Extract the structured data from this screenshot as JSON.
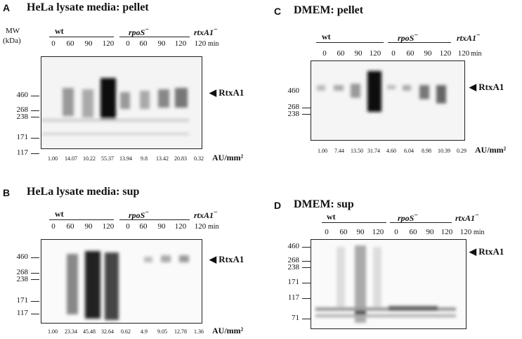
{
  "panels": {
    "A": {
      "letter": "A",
      "title": "HeLa lysate media:  pellet",
      "mw_header": "MW",
      "mw_unit": "(kDa)",
      "groups": [
        "wt",
        "rpoS",
        "rtxA1"
      ],
      "times": [
        "0",
        "60",
        "90",
        "120",
        "0",
        "60",
        "90",
        "120",
        "120"
      ],
      "min_label": "min",
      "mw_markers": [
        "460",
        "268",
        "238",
        "171",
        "117"
      ],
      "band_label": "RtxA1",
      "au_values": [
        "1.00",
        "14.07",
        "10.22",
        "55.37",
        "13.94",
        "9.8",
        "13.42",
        "20.83",
        "0.32"
      ],
      "au_unit": "AU/mm²"
    },
    "B": {
      "letter": "B",
      "title": "HeLa lysate media:  sup",
      "groups": [
        "wt",
        "rpoS",
        "rtxA1"
      ],
      "times": [
        "0",
        "60",
        "90",
        "120",
        "0",
        "60",
        "90",
        "120",
        "120"
      ],
      "min_label": "min",
      "mw_markers": [
        "460",
        "268",
        "238",
        "171",
        "117"
      ],
      "band_label": "RtxA1",
      "au_values": [
        "1.00",
        "23.34",
        "45.48",
        "32.64",
        "0.62",
        "4.9",
        "9.05",
        "12.78",
        "1.36"
      ],
      "au_unit": "AU/mm²"
    },
    "C": {
      "letter": "C",
      "title": "DMEM: pellet",
      "groups": [
        "wt",
        "rpoS",
        "rtxA1"
      ],
      "times": [
        "0",
        "60",
        "90",
        "120",
        "0",
        "60",
        "90",
        "120",
        "120"
      ],
      "min_label": "min",
      "mw_markers": [
        "460",
        "268",
        "238"
      ],
      "band_label": "RtxA1",
      "au_values": [
        "1.00",
        "7.44",
        "13.50",
        "31.74",
        "4.60",
        "6.04",
        "8.98",
        "10.39",
        "0.29"
      ],
      "au_unit": "AU/mm²"
    },
    "D": {
      "letter": "D",
      "title": "DMEM: sup",
      "groups": [
        "wt",
        "rpoS",
        "rtxA1"
      ],
      "times": [
        "0",
        "60",
        "90",
        "120",
        "0",
        "60",
        "90",
        "120",
        "120"
      ],
      "min_label": "min",
      "mw_markers": [
        "460",
        "268",
        "238",
        "171",
        "117",
        "71"
      ],
      "band_label": "RtxA1"
    }
  },
  "colors": {
    "blot_band": "#1a1a1a",
    "background": "#ffffff"
  }
}
